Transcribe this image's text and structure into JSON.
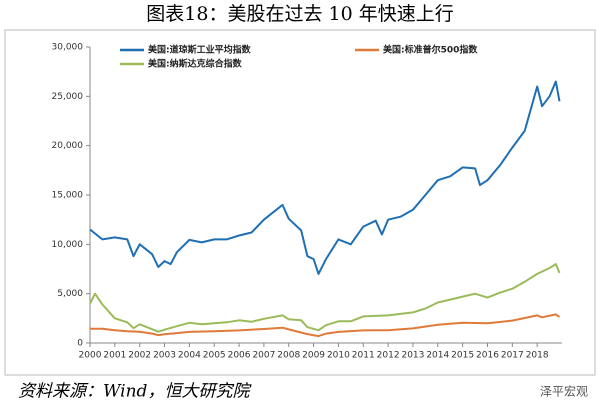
{
  "chart_data": {
    "type": "line",
    "title": "图表18：美股在过去 10 年快速上行",
    "source": "资料来源：Wind，恒大研究院",
    "watermark": "泽平宏观",
    "xlim": [
      2000,
      2019
    ],
    "xticks": [
      2000,
      2001,
      2002,
      2003,
      2004,
      2005,
      2006,
      2007,
      2008,
      2009,
      2010,
      2011,
      2012,
      2013,
      2014,
      2015,
      2016,
      2017,
      2018
    ],
    "ylim": [
      0,
      30000
    ],
    "yticks": [
      0,
      {
        "value": 5000,
        "label": "5,000"
      },
      {
        "value": 10000,
        "label": "10,000"
      },
      {
        "value": 15000,
        "label": "15,000"
      },
      {
        "value": 20000,
        "label": "20,000"
      },
      {
        "value": 25000,
        "label": "25,000"
      },
      {
        "value": 30000,
        "label": "30,000"
      }
    ],
    "series": [
      {
        "name": "美国:道琼斯工业平均指数",
        "color": "#1f6fb5",
        "x": [
          2000,
          2000.5,
          2001,
          2001.5,
          2001.75,
          2002,
          2002.5,
          2002.75,
          2003,
          2003.25,
          2003.5,
          2004,
          2004.5,
          2005,
          2005.5,
          2006,
          2006.5,
          2007,
          2007.5,
          2007.75,
          2008,
          2008.5,
          2008.75,
          2009,
          2009.2,
          2009.5,
          2010,
          2010.5,
          2011,
          2011.5,
          2011.75,
          2012,
          2012.5,
          2013,
          2013.5,
          2014,
          2014.5,
          2015,
          2015.5,
          2015.7,
          2016,
          2016.5,
          2017,
          2017.5,
          2018,
          2018.2,
          2018.5,
          2018.75,
          2018.9
        ],
        "values": [
          11500,
          10500,
          10700,
          10500,
          8800,
          10000,
          9000,
          7700,
          8300,
          8000,
          9200,
          10450,
          10200,
          10500,
          10500,
          10900,
          11200,
          12500,
          13500,
          14000,
          12600,
          11400,
          8800,
          8500,
          7000,
          8500,
          10500,
          10000,
          11800,
          12400,
          11000,
          12500,
          12800,
          13500,
          15000,
          16500,
          16900,
          17800,
          17700,
          16000,
          16500,
          18000,
          19800,
          21500,
          26000,
          24000,
          25000,
          26500,
          24500
        ]
      },
      {
        "name": "美国:标准普尔500指数",
        "color": "#e07a3a",
        "x": [
          2000,
          2000.5,
          2001,
          2001.5,
          2002,
          2002.5,
          2002.75,
          2003,
          2003.5,
          2004,
          2005,
          2006,
          2007,
          2007.75,
          2008,
          2008.75,
          2009.2,
          2009.5,
          2010,
          2011,
          2011.5,
          2012,
          2013,
          2014,
          2015,
          2016,
          2017,
          2018,
          2018.2,
          2018.75,
          2018.9
        ],
        "values": [
          1450,
          1450,
          1300,
          1200,
          1150,
          950,
          800,
          880,
          1000,
          1130,
          1200,
          1280,
          1420,
          1550,
          1380,
          900,
          700,
          950,
          1120,
          1280,
          1300,
          1300,
          1480,
          1850,
          2050,
          2000,
          2270,
          2800,
          2600,
          2900,
          2650
        ]
      },
      {
        "name": "美国:纳斯达克综合指数",
        "color": "#9bbb59",
        "x": [
          2000,
          2000.2,
          2000.5,
          2001,
          2001.5,
          2001.75,
          2002,
          2002.5,
          2002.75,
          2003,
          2003.5,
          2004,
          2004.5,
          2005,
          2005.5,
          2006,
          2006.5,
          2007,
          2007.75,
          2008,
          2008.5,
          2008.75,
          2009.2,
          2009.5,
          2010,
          2010.5,
          2011,
          2011.5,
          2012,
          2012.5,
          2013,
          2013.5,
          2014,
          2014.5,
          2015,
          2015.5,
          2016,
          2016.5,
          2017,
          2017.5,
          2018,
          2018.5,
          2018.75,
          2018.9
        ],
        "values": [
          4000,
          5000,
          3900,
          2500,
          2100,
          1500,
          1900,
          1400,
          1150,
          1350,
          1700,
          2050,
          1900,
          2000,
          2100,
          2300,
          2150,
          2450,
          2800,
          2400,
          2300,
          1600,
          1300,
          1800,
          2200,
          2200,
          2700,
          2750,
          2800,
          2950,
          3100,
          3500,
          4100,
          4400,
          4700,
          5000,
          4600,
          5100,
          5500,
          6200,
          7000,
          7600,
          8000,
          7100
        ]
      }
    ]
  }
}
